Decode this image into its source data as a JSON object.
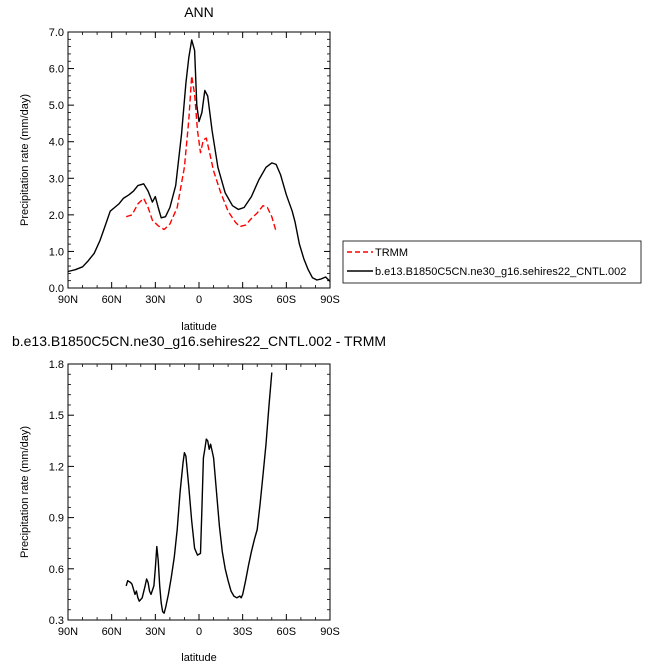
{
  "chart_data": [
    {
      "type": "line",
      "title": "ANN",
      "xlabel": "latitude",
      "ylabel": "Precipitation rate (mm/day)",
      "xlim": [
        90,
        -90
      ],
      "ylim": [
        0,
        7
      ],
      "x_ticks": [
        90,
        60,
        30,
        0,
        -30,
        -60,
        -90
      ],
      "x_tick_labels": [
        "90N",
        "60N",
        "30N",
        "0",
        "30S",
        "60S",
        "90S"
      ],
      "y_ticks": [
        0,
        1,
        2,
        3,
        4,
        5,
        6,
        7
      ],
      "y_tick_labels": [
        "0.0",
        "1.0",
        "2.0",
        "3.0",
        "4.0",
        "5.0",
        "6.0",
        "7.0"
      ],
      "legend_position": "right",
      "series": [
        {
          "name": "TRMM",
          "color": "#ff0000",
          "dash": "dashed",
          "points": [
            [
              50,
              1.95
            ],
            [
              46,
              2.0
            ],
            [
              42,
              2.3
            ],
            [
              38,
              2.45
            ],
            [
              35,
              2.2
            ],
            [
              32,
              1.85
            ],
            [
              28,
              1.7
            ],
            [
              24,
              1.6
            ],
            [
              20,
              1.75
            ],
            [
              15,
              2.2
            ],
            [
              10,
              3.3
            ],
            [
              7,
              4.6
            ],
            [
              5,
              5.8
            ],
            [
              3,
              5.3
            ],
            [
              1,
              4.3
            ],
            [
              -1,
              3.7
            ],
            [
              -3,
              4.05
            ],
            [
              -5,
              4.1
            ],
            [
              -7,
              3.75
            ],
            [
              -10,
              3.2
            ],
            [
              -15,
              2.6
            ],
            [
              -20,
              2.1
            ],
            [
              -25,
              1.8
            ],
            [
              -28,
              1.68
            ],
            [
              -32,
              1.72
            ],
            [
              -36,
              1.9
            ],
            [
              -40,
              2.05
            ],
            [
              -44,
              2.25
            ],
            [
              -47,
              2.2
            ],
            [
              -50,
              1.95
            ],
            [
              -53,
              1.55
            ]
          ]
        },
        {
          "name": "b.e13.B1850C5CN.ne30_g16.sehires22_CNTL.002",
          "color": "#000000",
          "dash": "solid",
          "points": [
            [
              90,
              0.45
            ],
            [
              85,
              0.5
            ],
            [
              80,
              0.58
            ],
            [
              76,
              0.75
            ],
            [
              72,
              0.95
            ],
            [
              68,
              1.3
            ],
            [
              64,
              1.75
            ],
            [
              61,
              2.1
            ],
            [
              58,
              2.2
            ],
            [
              55,
              2.3
            ],
            [
              52,
              2.45
            ],
            [
              48,
              2.55
            ],
            [
              45,
              2.65
            ],
            [
              42,
              2.8
            ],
            [
              38,
              2.85
            ],
            [
              35,
              2.65
            ],
            [
              32,
              2.35
            ],
            [
              30,
              2.5
            ],
            [
              28,
              2.2
            ],
            [
              26,
              1.92
            ],
            [
              23,
              1.95
            ],
            [
              20,
              2.2
            ],
            [
              16,
              2.8
            ],
            [
              12,
              4.2
            ],
            [
              9,
              5.6
            ],
            [
              7,
              6.3
            ],
            [
              5,
              6.78
            ],
            [
              3,
              6.5
            ],
            [
              1.5,
              5.0
            ],
            [
              0,
              4.55
            ],
            [
              -2,
              4.8
            ],
            [
              -4,
              5.4
            ],
            [
              -6,
              5.25
            ],
            [
              -9,
              4.3
            ],
            [
              -13,
              3.3
            ],
            [
              -18,
              2.6
            ],
            [
              -23,
              2.25
            ],
            [
              -27,
              2.15
            ],
            [
              -31,
              2.2
            ],
            [
              -36,
              2.5
            ],
            [
              -41,
              2.95
            ],
            [
              -46,
              3.3
            ],
            [
              -50,
              3.42
            ],
            [
              -53,
              3.38
            ],
            [
              -56,
              3.1
            ],
            [
              -60,
              2.55
            ],
            [
              -64,
              2.1
            ],
            [
              -66,
              1.8
            ],
            [
              -69,
              1.2
            ],
            [
              -72,
              0.8
            ],
            [
              -75,
              0.5
            ],
            [
              -78,
              0.28
            ],
            [
              -81,
              0.22
            ],
            [
              -84,
              0.25
            ],
            [
              -87,
              0.3
            ],
            [
              -90,
              0.18
            ]
          ]
        }
      ]
    },
    {
      "type": "line",
      "title": "b.e13.B1850C5CN.ne30_g16.sehires22_CNTL.002 - TRMM",
      "xlabel": "latitude",
      "ylabel": "Precipitation rate (mm/day)",
      "xlim": [
        90,
        -90
      ],
      "ylim": [
        0.3,
        1.8
      ],
      "x_ticks": [
        90,
        60,
        30,
        0,
        -30,
        -60,
        -90
      ],
      "x_tick_labels": [
        "90N",
        "60N",
        "30N",
        "0",
        "30S",
        "60S",
        "90S"
      ],
      "y_ticks": [
        0.3,
        0.6,
        0.9,
        1.2,
        1.5,
        1.8
      ],
      "y_tick_labels": [
        "0.3",
        "0.6",
        "0.9",
        "1.2",
        "1.5",
        "1.8"
      ],
      "series": [
        {
          "color": "#000000",
          "dash": "solid",
          "points": [
            [
              50,
              0.5
            ],
            [
              49,
              0.53
            ],
            [
              47,
              0.52
            ],
            [
              46,
              0.51
            ],
            [
              44,
              0.45
            ],
            [
              43,
              0.47
            ],
            [
              42,
              0.43
            ],
            [
              41,
              0.41
            ],
            [
              39,
              0.43
            ],
            [
              37,
              0.5
            ],
            [
              36,
              0.54
            ],
            [
              35,
              0.52
            ],
            [
              34,
              0.47
            ],
            [
              33,
              0.45
            ],
            [
              31,
              0.5
            ],
            [
              30,
              0.6
            ],
            [
              29,
              0.73
            ],
            [
              28,
              0.65
            ],
            [
              27,
              0.5
            ],
            [
              26,
              0.4
            ],
            [
              25,
              0.35
            ],
            [
              24,
              0.34
            ],
            [
              23,
              0.37
            ],
            [
              21,
              0.45
            ],
            [
              19,
              0.55
            ],
            [
              17,
              0.67
            ],
            [
              15,
              0.83
            ],
            [
              13,
              1.05
            ],
            [
              11,
              1.22
            ],
            [
              10,
              1.28
            ],
            [
              9,
              1.26
            ],
            [
              7,
              1.08
            ],
            [
              5,
              0.88
            ],
            [
              3,
              0.72
            ],
            [
              1,
              0.68
            ],
            [
              -1,
              0.69
            ],
            [
              -2,
              0.95
            ],
            [
              -3,
              1.25
            ],
            [
              -4,
              1.3
            ],
            [
              -5,
              1.36
            ],
            [
              -6,
              1.35
            ],
            [
              -7,
              1.3
            ],
            [
              -8,
              1.33
            ],
            [
              -9,
              1.29
            ],
            [
              -10,
              1.25
            ],
            [
              -12,
              1.05
            ],
            [
              -14,
              0.85
            ],
            [
              -16,
              0.7
            ],
            [
              -18,
              0.6
            ],
            [
              -20,
              0.53
            ],
            [
              -22,
              0.47
            ],
            [
              -24,
              0.44
            ],
            [
              -26,
              0.43
            ],
            [
              -28,
              0.44
            ],
            [
              -29,
              0.43
            ],
            [
              -30,
              0.45
            ],
            [
              -32,
              0.53
            ],
            [
              -34,
              0.62
            ],
            [
              -36,
              0.7
            ],
            [
              -38,
              0.77
            ],
            [
              -40,
              0.83
            ],
            [
              -42,
              0.98
            ],
            [
              -44,
              1.15
            ],
            [
              -46,
              1.33
            ],
            [
              -48,
              1.55
            ],
            [
              -50,
              1.75
            ]
          ]
        }
      ]
    }
  ]
}
